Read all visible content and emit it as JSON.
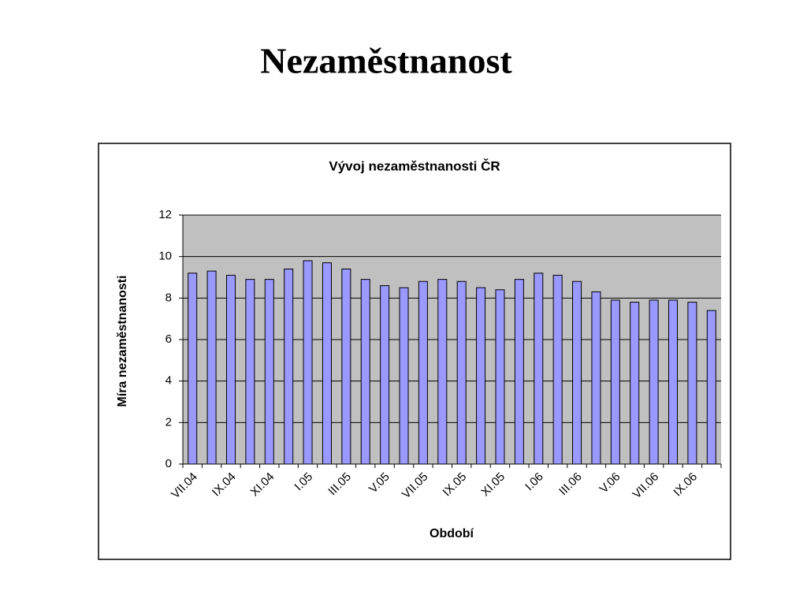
{
  "slide_title": "Nezaměstnanost",
  "chart_data": {
    "type": "bar",
    "title": "Vývoj nezaměstnanosti ČR",
    "x_label": "Období",
    "y_label": "Míra nezaměstnanosti",
    "categories": [
      "VII.04",
      null,
      "IX.04",
      null,
      "XI.04",
      null,
      "I.05",
      null,
      "III.05",
      null,
      "V.05",
      null,
      "VII.05",
      null,
      "IX.05",
      null,
      "XI.05",
      null,
      "I.06",
      null,
      "III.06",
      null,
      "V.06",
      null,
      "VII.06",
      null,
      "IX.06",
      null
    ],
    "values": [
      9.2,
      9.3,
      9.1,
      8.9,
      8.9,
      9.4,
      9.8,
      9.7,
      9.4,
      8.9,
      8.6,
      8.5,
      8.8,
      8.9,
      8.8,
      8.5,
      8.4,
      8.9,
      9.2,
      9.1,
      8.8,
      8.3,
      7.9,
      7.8,
      7.9,
      7.9,
      7.8,
      7.4
    ],
    "color": "#9999ff",
    "ylim": [
      0,
      12
    ],
    "yticks": [
      0,
      2,
      4,
      6,
      8,
      10,
      12
    ],
    "grid": true
  }
}
